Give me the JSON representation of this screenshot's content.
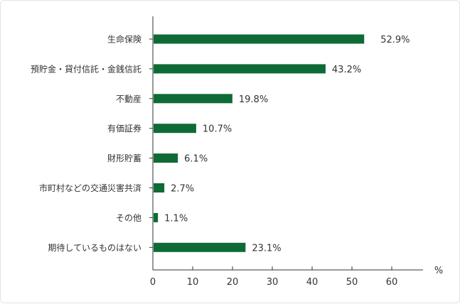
{
  "chart_data": {
    "type": "bar",
    "orientation": "horizontal",
    "categories": [
      "生命保険",
      "預貯金・貸付信託・金銭信託",
      "不動産",
      "有価証券",
      "財形貯蓄",
      "市町村などの交通災害共済",
      "その他",
      "期待しているものはない"
    ],
    "values": [
      52.9,
      43.2,
      19.8,
      10.7,
      6.1,
      2.7,
      1.1,
      23.1
    ],
    "value_labels": [
      "52.9%",
      "43.2%",
      "19.8%",
      "10.7%",
      "6.1%",
      "2.7%",
      "1.1%",
      "23.1%"
    ],
    "xlim": [
      0,
      68
    ],
    "xticks": [
      0,
      10,
      20,
      30,
      40,
      50,
      60
    ],
    "unit_label": "%",
    "bar_color": "#0f6b36",
    "grid": false,
    "legend": "none"
  }
}
